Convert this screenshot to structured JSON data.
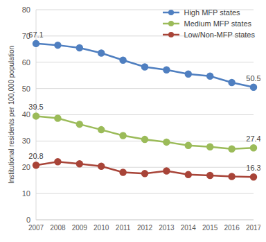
{
  "chart_data": {
    "type": "line",
    "y_label": "Institutional residents per 100,000 population",
    "categories": [
      "2007",
      "2008",
      "2009",
      "2010",
      "2011",
      "2012",
      "2013",
      "2014",
      "2015",
      "2016",
      "2017"
    ],
    "series": [
      {
        "name": "High MFP states",
        "color": "#4f7fc0",
        "marker": "circle",
        "values": [
          67.1,
          66.5,
          65.5,
          63.5,
          60.8,
          58.2,
          57.1,
          55.5,
          54.7,
          52.3,
          50.5
        ],
        "value_labels": [
          "67.1",
          null,
          null,
          null,
          null,
          null,
          null,
          null,
          null,
          null,
          "50.5"
        ]
      },
      {
        "name": "Medium MFP states",
        "color": "#9bbb59",
        "marker": "circle",
        "values": [
          39.5,
          38.7,
          36.4,
          34.3,
          32.1,
          30.6,
          29.6,
          28.3,
          27.8,
          27.0,
          27.4
        ],
        "value_labels": [
          "39.5",
          null,
          null,
          null,
          null,
          null,
          null,
          null,
          null,
          null,
          "27.4"
        ]
      },
      {
        "name": "Low/Non-MFP states",
        "color": "#a84438",
        "marker": "circle",
        "values": [
          20.8,
          22.1,
          21.3,
          20.4,
          18.1,
          17.6,
          18.6,
          17.2,
          16.9,
          16.5,
          16.3
        ],
        "value_labels": [
          "20.8",
          null,
          null,
          null,
          null,
          null,
          null,
          null,
          null,
          null,
          "16.3"
        ]
      }
    ],
    "ylim": [
      0,
      80
    ],
    "yticks": [
      0,
      10,
      20,
      30,
      40,
      50,
      60,
      70,
      80
    ],
    "grid": true,
    "legend": "upper right"
  }
}
